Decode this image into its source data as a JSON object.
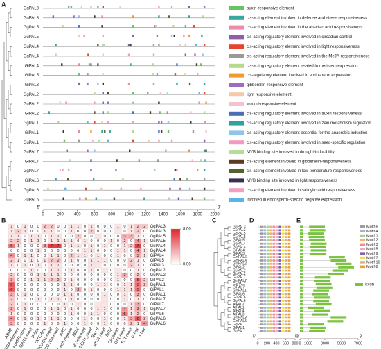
{
  "panel_labels": [
    "A",
    "B",
    "C",
    "D",
    "E"
  ],
  "panel_a": {
    "genes": [
      "GgPAL3",
      "GuPAL3",
      "GgPAL5",
      "GuPAL5",
      "GuPAL4",
      "GgPAL4",
      "GiPAL4",
      "GiPAL5",
      "GiPAL3",
      "GgPAL2",
      "GuPAL2",
      "GiPAL2",
      "GgPAL1",
      "GiPAL1",
      "GuPAL1",
      "GuPAL7",
      "GiPAL7",
      "GgPAL7",
      "GiPAL6",
      "GgPAL6",
      "GuPAL6"
    ],
    "sites": [
      [
        300,
        330,
        450,
        560,
        640,
        700,
        900,
        1350,
        1500,
        1700,
        1880
      ],
      [
        120,
        360,
        420,
        600,
        690,
        1050,
        1350,
        1470,
        1700,
        1860
      ],
      [
        230,
        420,
        690,
        1050,
        1300,
        1320,
        1520,
        1660,
        1760
      ],
      [
        420,
        480,
        700,
        1050,
        1330,
        1500,
        1530,
        1640,
        1700,
        1850
      ],
      [
        150,
        640,
        700,
        710,
        1000,
        1020,
        1290,
        1350,
        1600,
        1660,
        1780,
        1880
      ],
      [
        150,
        520,
        530,
        700,
        1000,
        1290,
        1660,
        1770,
        1860
      ],
      [
        220,
        420,
        540,
        560,
        640,
        1020,
        1280,
        1560,
        1790,
        1840
      ],
      [
        420,
        520,
        700,
        1280,
        1330,
        1540,
        1650,
        1800
      ],
      [
        420,
        520,
        640,
        700,
        1000,
        1290,
        1560,
        1710,
        1880
      ],
      [
        600,
        700,
        760,
        1050,
        1220,
        1370,
        1450,
        1820,
        1880
      ],
      [
        200,
        270,
        600,
        700,
        760,
        1050,
        1350,
        1820,
        1900
      ],
      [
        70,
        600,
        700,
        760,
        1050,
        1250,
        1360,
        1450,
        1720,
        1880
      ],
      [
        180,
        520,
        600,
        690,
        760,
        1050,
        1350,
        1380,
        1460,
        1720,
        1890
      ],
      [
        240,
        420,
        560,
        690,
        720,
        780,
        1050,
        1350,
        1380,
        1460,
        1750,
        1900
      ],
      [
        250,
        420,
        580,
        650,
        760,
        1050,
        1230,
        1350,
        1500,
        1880
      ],
      [
        280,
        520,
        600,
        1010,
        1430,
        1700,
        1880,
        1900
      ],
      [
        310,
        560,
        860,
        1120,
        1340,
        1740,
        1840,
        1890
      ],
      [
        200,
        230,
        300,
        560,
        850,
        1300,
        1540,
        1560,
        1800,
        1880
      ],
      [
        150,
        290,
        590,
        930,
        1530,
        1600,
        1680,
        1880
      ],
      [
        60,
        260,
        500,
        680,
        910,
        1140,
        1480,
        1600,
        1710,
        1880
      ],
      [
        240,
        430,
        500,
        620,
        830,
        1180,
        1470,
        1580,
        1740,
        1880
      ]
    ],
    "xlim": [
      0,
      2000
    ],
    "xticks": [
      0,
      200,
      400,
      600,
      800,
      1000,
      1200,
      1400,
      1600,
      1800,
      2000
    ],
    "end_labels": [
      "5'",
      "3'"
    ],
    "legend": [
      {
        "name": "auxin-responsive element",
        "color": "#66c466"
      },
      {
        "name": "cis-acting element involved in defense and stress responsiveness",
        "color": "#3aa6a0"
      },
      {
        "name": "cis-acting element involved in the abscisic acid responsiveness",
        "color": "#f08aa8"
      },
      {
        "name": "cis-acting regulatory element involved in circadian control",
        "color": "#8e5ea8"
      },
      {
        "name": "cis-acting regulatory element involved in light responsiveness",
        "color": "#e8432e"
      },
      {
        "name": "cis-acting regulatory element involved in the MeJA-responsiveness",
        "color": "#9a9a9a"
      },
      {
        "name": "cis-acting regulatory element related to meristem expression",
        "color": "#b7d98c"
      },
      {
        "name": "cis-regulatory element involved in endosperm expression",
        "color": "#f39a2e"
      },
      {
        "name": "gibberellin-responsive element",
        "color": "#9b6fc0"
      },
      {
        "name": "light responsive element",
        "color": "#f5c9a8"
      },
      {
        "name": "wound-responsive element",
        "color": "#f7c0d0"
      },
      {
        "name": "cis-acting regulatory element involved in auxin responsiveness",
        "color": "#4a6fb5"
      },
      {
        "name": "cis-acting regulatory element involved in zein metabolism regulation",
        "color": "#31a39b"
      },
      {
        "name": "cis-acting regulatory element essential for the anaerobic induction",
        "color": "#8cc6e8"
      },
      {
        "name": "cis-acting regulatory element involved in seed-specific regulation",
        "color": "#f49ac0"
      },
      {
        "name": "MYB binding site involved in drought-inducibility",
        "color": "#b5dd9a"
      },
      {
        "name": "cis-acting element involved in gibberellin-responsiveness",
        "color": "#5a3a22"
      },
      {
        "name": "cis-acting element involved in low-temperature responsiveness",
        "color": "#55622e"
      },
      {
        "name": "MYB binding site involved in light responsiveness",
        "color": "#3a2f52"
      },
      {
        "name": "cis-acting element involved in salicylic acid responsiveness",
        "color": "#f2a0c0"
      },
      {
        "name": "involved in endosperm-specific negative expression",
        "color": "#5bb4e5"
      }
    ]
  },
  "panel_b": {
    "rows": [
      "GgPAL3",
      "GuPAL3",
      "GgPAL5",
      "GuPAL5",
      "GuPAL4",
      "GgPAL4",
      "GiPAL4",
      "GiPAL5",
      "GiPAL3",
      "GgPAL2",
      "GuPAL2",
      "GiPAL2",
      "GgPAL1",
      "GiPAL1",
      "GuPAL1",
      "GuPAL7",
      "GiPAL7",
      "GgPAL7",
      "GiPAL6",
      "GgPAL6",
      "GuPAL6"
    ],
    "columns": [
      "ABRE",
      "TGA-element",
      "AuxRR-core",
      "GARE-motif",
      "P-box",
      "TATC-box",
      "TGACG-motif",
      "CGTCA-motif",
      "ARE",
      "TC-rich repeats",
      "MBS",
      "RY-element",
      "GCN4_motif",
      "Box II",
      "ATCT-motif",
      "MRE",
      "Circadian",
      "GT1-motif",
      "TCT-motif",
      "G-box",
      "I-box"
    ],
    "values": [
      [
        1,
        0,
        1,
        0,
        0,
        2,
        2,
        0,
        0,
        1,
        1,
        0,
        1,
        0,
        0,
        0,
        1,
        0,
        1,
        2,
        2
      ],
      [
        1,
        2,
        1,
        0,
        0,
        1,
        1,
        0,
        0,
        1,
        0,
        0,
        2,
        0,
        0,
        0,
        1,
        0,
        1,
        2,
        0
      ],
      [
        1,
        1,
        0,
        1,
        1,
        0,
        1,
        1,
        0,
        0,
        2,
        0,
        0,
        1,
        0,
        0,
        0,
        3,
        3,
        1,
        0
      ],
      [
        2,
        2,
        0,
        1,
        1,
        0,
        1,
        1,
        1,
        1,
        0,
        1,
        0,
        0,
        0,
        1,
        0,
        2,
        0,
        4,
        1
      ],
      [
        5,
        1,
        0,
        0,
        0,
        3,
        7,
        7,
        0,
        1,
        1,
        0,
        1,
        0,
        1,
        0,
        0,
        1,
        2,
        7,
        0
      ],
      [
        0,
        0,
        0,
        0,
        1,
        0,
        0,
        0,
        0,
        0,
        0,
        1,
        1,
        0,
        0,
        0,
        1,
        1,
        0,
        4,
        1
      ],
      [
        4,
        0,
        1,
        1,
        0,
        0,
        1,
        1,
        0,
        2,
        1,
        1,
        0,
        1,
        0,
        0,
        1,
        0,
        0,
        3,
        1
      ],
      [
        2,
        1,
        0,
        1,
        0,
        1,
        2,
        2,
        0,
        1,
        0,
        0,
        1,
        1,
        1,
        0,
        0,
        0,
        2,
        1,
        0
      ],
      [
        1,
        0,
        1,
        0,
        1,
        0,
        1,
        1,
        0,
        0,
        0,
        0,
        1,
        1,
        0,
        0,
        0,
        0,
        2,
        1,
        0
      ],
      [
        0,
        0,
        0,
        1,
        0,
        0,
        1,
        1,
        0,
        1,
        0,
        0,
        1,
        0,
        1,
        0,
        1,
        0,
        0,
        1,
        0
      ],
      [
        2,
        0,
        0,
        0,
        1,
        1,
        1,
        1,
        0,
        0,
        0,
        0,
        0,
        0,
        0,
        0,
        1,
        3,
        0,
        2,
        0
      ],
      [
        3,
        0,
        0,
        1,
        1,
        1,
        2,
        2,
        0,
        1,
        0,
        0,
        0,
        0,
        0,
        0,
        1,
        0,
        0,
        5,
        2
      ],
      [
        6,
        0,
        0,
        0,
        0,
        0,
        0,
        0,
        1,
        1,
        0,
        0,
        0,
        1,
        1,
        0,
        0,
        1,
        1,
        5,
        2
      ],
      [
        6,
        0,
        0,
        0,
        0,
        0,
        0,
        0,
        1,
        0,
        3,
        0,
        1,
        0,
        0,
        0,
        1,
        1,
        1,
        5,
        0
      ],
      [
        3,
        0,
        1,
        0,
        0,
        0,
        0,
        0,
        1,
        1,
        0,
        0,
        0,
        0,
        1,
        0,
        0,
        1,
        0,
        3,
        0
      ],
      [
        2,
        0,
        0,
        0,
        1,
        0,
        1,
        1,
        0,
        1,
        0,
        0,
        0,
        0,
        1,
        0,
        0,
        1,
        0,
        1,
        0
      ],
      [
        2,
        0,
        1,
        0,
        0,
        0,
        0,
        0,
        1,
        0,
        1,
        0,
        0,
        1,
        1,
        0,
        0,
        0,
        1,
        3,
        0
      ],
      [
        3,
        0,
        1,
        0,
        0,
        0,
        1,
        1,
        0,
        1,
        0,
        0,
        0,
        1,
        1,
        0,
        0,
        4,
        1,
        3,
        1
      ],
      [
        1,
        0,
        0,
        0,
        0,
        0,
        0,
        0,
        0,
        1,
        0,
        0,
        1,
        1,
        0,
        0,
        0,
        5,
        1,
        2,
        0
      ],
      [
        4,
        0,
        1,
        0,
        1,
        0,
        1,
        1,
        0,
        0,
        0,
        1,
        0,
        0,
        1,
        0,
        0,
        1,
        3,
        6,
        2
      ],
      [
        3,
        0,
        0,
        0,
        0,
        1,
        0,
        0,
        1,
        0,
        0,
        1,
        0,
        0,
        1,
        0,
        0,
        0,
        2,
        1,
        4
      ]
    ],
    "colorbar": {
      "ticks": [
        {
          "value": 8,
          "label": "8.00"
        },
        {
          "value": 0,
          "label": "0.00"
        }
      ],
      "colors": [
        "#ffffff",
        "#e0242a"
      ]
    }
  },
  "panel_c": {
    "genes": [
      "GgPAL3",
      "GuPAL3",
      "GgPAL5",
      "GuPAL5",
      "GiPAL5",
      "GgPAL4",
      "GuPAL4",
      "GiPAL4",
      "GiPAL3",
      "GmPAL6",
      "GmPAL4",
      "GmPAL2",
      "GiPAL2",
      "GuPAL2",
      "GgPAL2",
      "GuPAL7",
      "GmPAL7",
      "GgPAL7",
      "GiPAL7",
      "GmPAL1",
      "GiPAL6",
      "GuPAL6",
      "GgPAL6",
      "AtPAL2",
      "AtPAL1",
      "AtPAL4",
      "AtPAL3",
      "GmPAL8",
      "GmPAL5",
      "GgPAL1",
      "GiPAL1",
      "GuPAL1"
    ]
  },
  "panel_d": {
    "xlim": [
      0,
      800
    ],
    "xticks": [
      0,
      200,
      400,
      600,
      800
    ],
    "end_labels": [
      "5'",
      "3'"
    ],
    "motifs": [
      {
        "name": "Motif 6",
        "color": "#9e9e9e"
      },
      {
        "name": "Motif 4",
        "color": "#9fb3d6"
      },
      {
        "name": "Motif 1",
        "color": "#a8d08d"
      },
      {
        "name": "Motif 2",
        "color": "#f6b26b"
      },
      {
        "name": "Motif 3",
        "color": "#f28c8c"
      },
      {
        "name": "Motif 5",
        "color": "#f4a6c8"
      },
      {
        "name": "Motif 9",
        "color": "#7b5ea7"
      },
      {
        "name": "Motif 7",
        "color": "#f4e04d"
      },
      {
        "name": "Motif 10",
        "color": "#d9b38c"
      },
      {
        "name": "Motif 8",
        "color": "#f39c34"
      }
    ]
  },
  "panel_e": {
    "xlim": [
      0,
      7000
    ],
    "xticks": [
      0,
      1000,
      3000,
      5000,
      7000
    ],
    "end_labels": [
      "5'",
      "3'"
    ],
    "exon_label": "exon",
    "exon_color": "#7cc242",
    "exons": [
      [
        [
          0,
          400
        ],
        [
          1100,
          3000
        ]
      ],
      [
        [
          0,
          400
        ],
        [
          1150,
          3050
        ]
      ],
      [
        [
          0,
          400
        ],
        [
          1000,
          2900
        ]
      ],
      [
        [
          0,
          400
        ],
        [
          1050,
          2950
        ]
      ],
      [
        [
          0,
          400
        ],
        [
          1100,
          3000
        ]
      ],
      [
        [
          0,
          400
        ],
        [
          1300,
          3200
        ]
      ],
      [
        [
          0,
          400
        ],
        [
          1250,
          3150
        ]
      ],
      [
        [
          0,
          400
        ],
        [
          1300,
          3200
        ]
      ],
      [
        [
          0,
          400
        ],
        [
          1200,
          3100
        ]
      ],
      [
        [
          0,
          400
        ],
        [
          3500,
          5400
        ]
      ],
      [
        [
          0,
          400
        ],
        [
          3700,
          5600
        ]
      ],
      [
        [
          0,
          400
        ],
        [
          4300,
          6200
        ]
      ],
      [
        [
          0,
          400
        ],
        [
          4600,
          6500
        ]
      ],
      [
        [
          0,
          400
        ],
        [
          3900,
          5800
        ]
      ],
      [
        [
          0,
          400
        ],
        [
          3400,
          5300
        ]
      ],
      [
        [
          0,
          400
        ],
        [
          1800,
          3700
        ]
      ],
      [
        [
          0,
          400
        ],
        [
          1700,
          3600
        ]
      ],
      [
        [
          0,
          400
        ],
        [
          1900,
          3800
        ]
      ],
      [
        [
          0,
          400
        ],
        [
          2000,
          3900
        ]
      ],
      [
        [
          0,
          400
        ],
        [
          1600,
          3500
        ]
      ],
      [
        [
          0,
          400
        ],
        [
          1500,
          3400
        ]
      ],
      [
        [
          0,
          400
        ],
        [
          1700,
          3600
        ]
      ],
      [
        [
          0,
          400
        ],
        [
          1600,
          3500
        ]
      ],
      [
        [
          0,
          400
        ],
        [
          1900,
          3800
        ]
      ],
      [
        [
          0,
          400
        ],
        [
          1000,
          2900
        ]
      ],
      [
        [
          0,
          400
        ],
        [
          1700,
          3600
        ]
      ],
      [
        [
          0,
          400
        ],
        [
          1500,
          3400
        ]
      ],
      [
        [
          0,
          400
        ],
        [
          3700,
          5600
        ]
      ],
      [
        [
          0,
          400
        ],
        [
          3300,
          5200
        ]
      ],
      [
        [
          0,
          400
        ],
        [
          1000,
          2900
        ]
      ],
      [
        [
          0,
          400
        ],
        [
          1200,
          3100
        ]
      ],
      [
        [
          0,
          400
        ],
        [
          1100,
          3000
        ]
      ]
    ]
  }
}
